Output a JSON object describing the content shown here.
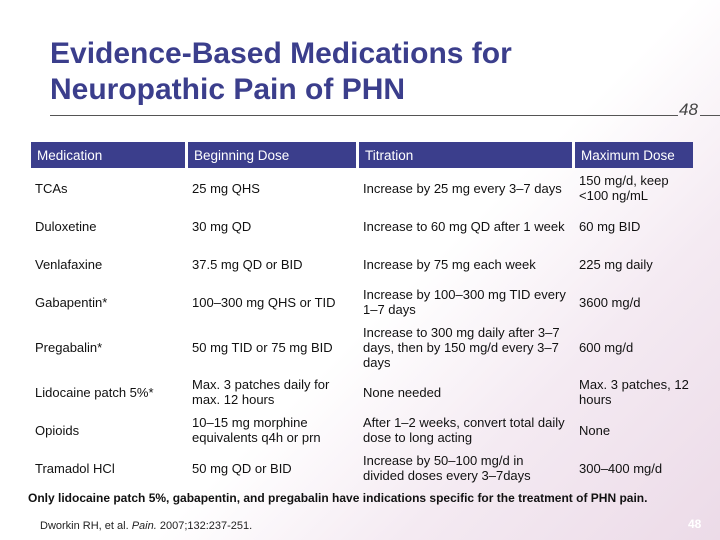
{
  "title": "Evidence-Based Medications for Neuropathic Pain of PHN",
  "slide_number": "48",
  "table": {
    "headers": [
      "Medication",
      "Beginning Dose",
      "Titration",
      "Maximum Dose"
    ],
    "rows": [
      [
        "TCAs",
        "25 mg QHS",
        "Increase by 25 mg every 3–7 days",
        "150 mg/d, keep <100 ng/mL"
      ],
      [
        "Duloxetine",
        "30 mg QD",
        "Increase to 60 mg QD after 1 week",
        "60 mg BID"
      ],
      [
        "Venlafaxine",
        "37.5 mg QD or BID",
        "Increase by 75 mg each week",
        "225 mg daily"
      ],
      [
        "Gabapentin*",
        "100–300 mg QHS or TID",
        "Increase by 100–300 mg TID every 1–7 days",
        "3600 mg/d"
      ],
      [
        "Pregabalin*",
        "50 mg TID or 75 mg BID",
        "Increase to 300 mg daily after 3–7 days, then by 150 mg/d every 3–7 days",
        "600 mg/d"
      ],
      [
        "Lidocaine patch 5%*",
        "Max. 3 patches daily for max. 12 hours",
        "None needed",
        "Max. 3 patches, 12 hours"
      ],
      [
        "Opioids",
        "10–15 mg morphine equivalents q4h or prn",
        "After 1–2 weeks, convert total daily dose to long acting",
        "None"
      ],
      [
        "Tramadol HCl",
        "50 mg QD or BID",
        "Increase by 50–100 mg/d in divided doses every 3–7days",
        "300–400 mg/d"
      ]
    ]
  },
  "footnote": "Only lidocaine patch 5%, gabapentin, and pregabalin have indications specific for the treatment of PHN pain.",
  "citation": {
    "authors": "Dworkin RH, et al.",
    "journal": "Pain.",
    "details": "2007;132:237-251."
  }
}
